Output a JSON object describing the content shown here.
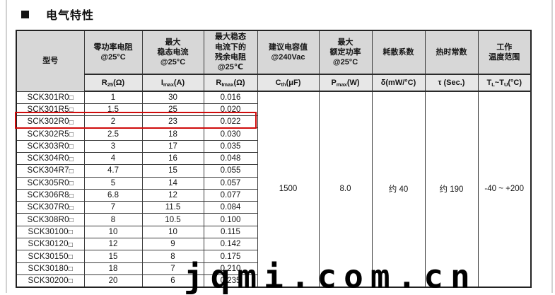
{
  "page": {
    "title": "电气特性",
    "watermark": "jqmi.com.cn"
  },
  "colors": {
    "header_bg": "#d7d7d7",
    "subheader_bg": "#e7e7e7",
    "border": "#3c3c3c",
    "highlight_red": "#cf0c0c",
    "text": "#141414"
  },
  "table": {
    "model_header": "型号",
    "group_headers": [
      "零功率电阻\n@25°C",
      "最大\n稳态电流\n@25°C",
      "最大稳态\n电流下的\n残余电阻\n@25℃",
      "建议电容值\n@240Vac",
      "最大\n额定功率\n@25°C",
      "耗散系数",
      "热时常数",
      "工作\n温度范围"
    ],
    "sub_headers": [
      {
        "pre": "R",
        "sub": "25",
        "mid": "(Ω)"
      },
      {
        "pre": "I",
        "sub": "max",
        "mid": "(A)"
      },
      {
        "pre": "R",
        "sub": "Imax",
        "mid": "(Ω)"
      },
      {
        "pre": "C",
        "sub": "th",
        "mid": "(μF)"
      },
      {
        "pre": "P",
        "sub": "max",
        "mid": "(W)"
      },
      {
        "pre": "δ(mW/°C)",
        "sub": "",
        "mid": ""
      },
      {
        "pre": "τ (Sec.)",
        "sub": "",
        "mid": ""
      },
      {
        "pre": "T",
        "sub": "L",
        "mid": "~T",
        "sub2": "U",
        "post": "(°C)"
      }
    ],
    "row_suffix": "□",
    "rows": [
      {
        "model": "SCK301R0",
        "r25": "1",
        "imax": "30",
        "rimax": "0.016"
      },
      {
        "model": "SCK301R5",
        "r25": "1.5",
        "imax": "25",
        "rimax": "0.020"
      },
      {
        "model": "SCK302R0",
        "r25": "2",
        "imax": "23",
        "rimax": "0.022"
      },
      {
        "model": "SCK302R5",
        "r25": "2.5",
        "imax": "18",
        "rimax": "0.030"
      },
      {
        "model": "SCK303R0",
        "r25": "3",
        "imax": "17",
        "rimax": "0.035"
      },
      {
        "model": "SCK304R0",
        "r25": "4",
        "imax": "16",
        "rimax": "0.048"
      },
      {
        "model": "SCK304R7",
        "r25": "4.7",
        "imax": "15",
        "rimax": "0.055"
      },
      {
        "model": "SCK305R0",
        "r25": "5",
        "imax": "14",
        "rimax": "0.057"
      },
      {
        "model": "SCK306R8",
        "r25": "6.8",
        "imax": "12",
        "rimax": "0.077"
      },
      {
        "model": "SCK307R0",
        "r25": "7",
        "imax": "11.5",
        "rimax": "0.084"
      },
      {
        "model": "SCK308R0",
        "r25": "8",
        "imax": "10.5",
        "rimax": "0.100"
      },
      {
        "model": "SCK30100",
        "r25": "10",
        "imax": "10",
        "rimax": "0.115"
      },
      {
        "model": "SCK30120",
        "r25": "12",
        "imax": "9",
        "rimax": "0.142"
      },
      {
        "model": "SCK30150",
        "r25": "15",
        "imax": "8",
        "rimax": "0.175"
      },
      {
        "model": "SCK30180",
        "r25": "18",
        "imax": "7",
        "rimax": "0.210"
      },
      {
        "model": "SCK30200",
        "r25": "20",
        "imax": "6",
        "rimax": "0.235"
      }
    ],
    "highlighted_model": "SCK302R0",
    "merged": {
      "cth": "1500",
      "pmax": "8.0",
      "delta": "约 40",
      "tau": "约 190",
      "temp_range": "-40 ~ +200"
    }
  }
}
